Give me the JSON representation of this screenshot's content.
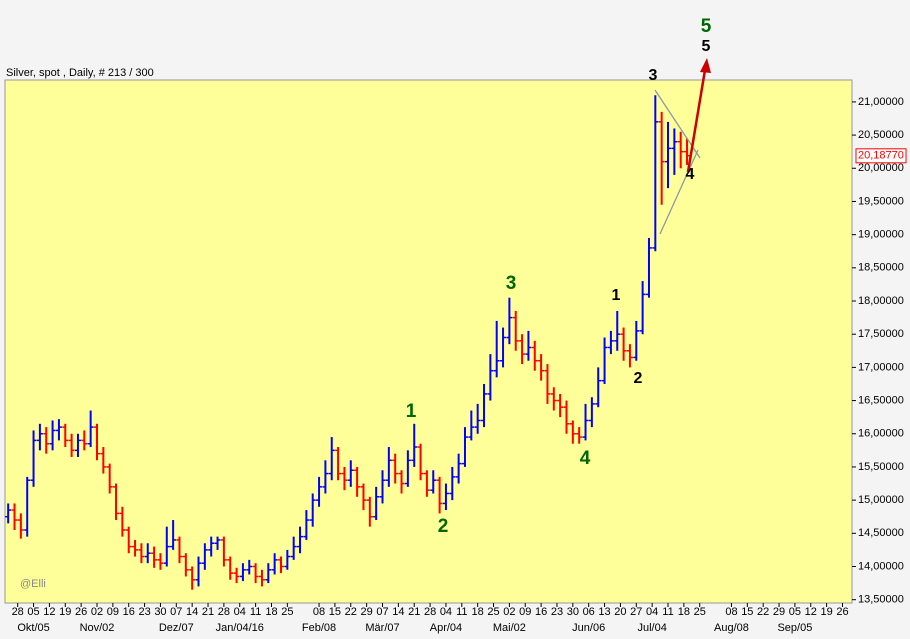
{
  "chart_data": {
    "type": "ohlc",
    "title": "Silver, spot , Daily, # 213 / 300",
    "watermark": "@Elli",
    "up_color": "#0000ff",
    "down_color": "#ff0000",
    "x": [
      -3,
      -1,
      1,
      3,
      5,
      7,
      9,
      11,
      13,
      15,
      17,
      19,
      21,
      23,
      25,
      27,
      29,
      31,
      33,
      35,
      37,
      39,
      41,
      43,
      45,
      47,
      49,
      51,
      53,
      55,
      57,
      59,
      61,
      63,
      65,
      67,
      69,
      71,
      73,
      75,
      77,
      79,
      81,
      83,
      85,
      87,
      89,
      91,
      93,
      95,
      97,
      99,
      101,
      103,
      105,
      107,
      109,
      111,
      113,
      115,
      117,
      119,
      121,
      123,
      125,
      127,
      129,
      131,
      133,
      135,
      137,
      139,
      141,
      143,
      145,
      147,
      149,
      151,
      153,
      155,
      157,
      159,
      161,
      163,
      165,
      167,
      169,
      171,
      173,
      175,
      177,
      179,
      181,
      183,
      185,
      187,
      189,
      191,
      193,
      195,
      197,
      199,
      201,
      203,
      205,
      207,
      209,
      211
    ],
    "values": [
      [
        14.75,
        14.95,
        14.65,
        14.85
      ],
      [
        14.85,
        14.95,
        14.55,
        14.7
      ],
      [
        14.7,
        14.8,
        14.42,
        14.55
      ],
      [
        14.55,
        15.35,
        14.45,
        15.3
      ],
      [
        15.3,
        16.05,
        15.2,
        15.9
      ],
      [
        15.9,
        16.15,
        15.75,
        16.0
      ],
      [
        16.0,
        16.1,
        15.7,
        15.85
      ],
      [
        15.85,
        16.2,
        15.75,
        16.05
      ],
      [
        16.05,
        16.22,
        15.9,
        16.1
      ],
      [
        16.1,
        16.15,
        15.8,
        15.9
      ],
      [
        15.9,
        16.0,
        15.65,
        15.75
      ],
      [
        15.75,
        16.0,
        15.65,
        15.9
      ],
      [
        15.9,
        16.05,
        15.75,
        15.85
      ],
      [
        15.85,
        16.35,
        15.8,
        16.1
      ],
      [
        16.1,
        16.15,
        15.6,
        15.7
      ],
      [
        15.7,
        15.8,
        15.4,
        15.5
      ],
      [
        15.5,
        15.55,
        15.1,
        15.2
      ],
      [
        15.2,
        15.25,
        14.7,
        14.8
      ],
      [
        14.8,
        14.9,
        14.45,
        14.55
      ],
      [
        14.55,
        14.6,
        14.2,
        14.3
      ],
      [
        14.3,
        14.4,
        14.15,
        14.25
      ],
      [
        14.25,
        14.35,
        14.05,
        14.15
      ],
      [
        14.15,
        14.35,
        14.05,
        14.2
      ],
      [
        14.2,
        14.3,
        13.98,
        14.1
      ],
      [
        14.1,
        14.2,
        13.95,
        14.05
      ],
      [
        14.05,
        14.6,
        14.0,
        14.3
      ],
      [
        14.3,
        14.7,
        14.25,
        14.4
      ],
      [
        14.4,
        14.45,
        14.05,
        14.15
      ],
      [
        14.15,
        14.2,
        13.85,
        13.95
      ],
      [
        13.95,
        14.0,
        13.65,
        13.8
      ],
      [
        13.8,
        14.15,
        13.7,
        14.05
      ],
      [
        14.05,
        14.35,
        13.95,
        14.25
      ],
      [
        14.25,
        14.45,
        14.15,
        14.35
      ],
      [
        14.35,
        14.45,
        14.25,
        14.4
      ],
      [
        14.4,
        14.45,
        14.0,
        14.1
      ],
      [
        14.1,
        14.15,
        13.8,
        13.9
      ],
      [
        13.9,
        13.98,
        13.75,
        13.85
      ],
      [
        13.85,
        14.05,
        13.78,
        13.95
      ],
      [
        13.95,
        14.1,
        13.88,
        14.0
      ],
      [
        14.0,
        14.05,
        13.75,
        13.85
      ],
      [
        13.85,
        13.95,
        13.7,
        13.8
      ],
      [
        13.8,
        14.05,
        13.75,
        13.95
      ],
      [
        13.95,
        14.2,
        13.88,
        14.1
      ],
      [
        14.1,
        14.15,
        13.9,
        14.0
      ],
      [
        14.0,
        14.25,
        13.95,
        14.15
      ],
      [
        14.15,
        14.45,
        14.1,
        14.3
      ],
      [
        14.3,
        14.6,
        14.2,
        14.45
      ],
      [
        14.45,
        14.85,
        14.4,
        14.7
      ],
      [
        14.7,
        15.1,
        14.6,
        15.0
      ],
      [
        15.0,
        15.35,
        14.9,
        15.2
      ],
      [
        15.2,
        15.6,
        15.1,
        15.4
      ],
      [
        15.4,
        15.95,
        15.3,
        15.75
      ],
      [
        15.75,
        15.8,
        15.3,
        15.4
      ],
      [
        15.4,
        15.5,
        15.15,
        15.3
      ],
      [
        15.3,
        15.6,
        15.2,
        15.45
      ],
      [
        15.45,
        15.5,
        15.05,
        15.2
      ],
      [
        15.2,
        15.25,
        14.85,
        15.0
      ],
      [
        15.0,
        15.05,
        14.6,
        14.75
      ],
      [
        14.75,
        15.2,
        14.7,
        15.05
      ],
      [
        15.05,
        15.45,
        14.95,
        15.3
      ],
      [
        15.3,
        15.8,
        15.2,
        15.6
      ],
      [
        15.6,
        15.7,
        15.25,
        15.4
      ],
      [
        15.4,
        15.45,
        15.1,
        15.25
      ],
      [
        15.25,
        15.75,
        15.2,
        15.6
      ],
      [
        15.6,
        16.15,
        15.5,
        15.8
      ],
      [
        15.8,
        15.85,
        15.3,
        15.4
      ],
      [
        15.4,
        15.45,
        15.05,
        15.15
      ],
      [
        15.15,
        15.45,
        15.1,
        15.3
      ],
      [
        15.3,
        15.35,
        14.8,
        14.95
      ],
      [
        14.95,
        15.25,
        14.85,
        15.1
      ],
      [
        15.1,
        15.5,
        15.0,
        15.35
      ],
      [
        15.35,
        15.7,
        15.25,
        15.55
      ],
      [
        15.55,
        16.1,
        15.5,
        15.95
      ],
      [
        15.95,
        16.35,
        15.9,
        16.1
      ],
      [
        16.1,
        16.45,
        16.0,
        16.2
      ],
      [
        16.2,
        16.75,
        16.1,
        16.6
      ],
      [
        16.6,
        17.2,
        16.5,
        16.95
      ],
      [
        16.95,
        17.7,
        16.85,
        17.1
      ],
      [
        17.1,
        17.6,
        17.0,
        17.45
      ],
      [
        17.45,
        18.05,
        17.35,
        17.75
      ],
      [
        17.75,
        17.85,
        17.25,
        17.4
      ],
      [
        17.4,
        17.5,
        17.05,
        17.2
      ],
      [
        17.2,
        17.55,
        17.1,
        17.3
      ],
      [
        17.3,
        17.4,
        16.95,
        17.1
      ],
      [
        17.1,
        17.2,
        16.8,
        16.95
      ],
      [
        16.95,
        17.05,
        16.45,
        16.6
      ],
      [
        16.6,
        16.7,
        16.35,
        16.5
      ],
      [
        16.5,
        16.6,
        16.25,
        16.4
      ],
      [
        16.4,
        16.5,
        16.0,
        16.15
      ],
      [
        16.15,
        16.2,
        15.85,
        16.0
      ],
      [
        16.0,
        16.1,
        15.85,
        15.95
      ],
      [
        15.95,
        16.45,
        15.9,
        16.2
      ],
      [
        16.2,
        16.55,
        16.1,
        16.45
      ],
      [
        16.45,
        17.0,
        16.4,
        16.8
      ],
      [
        16.8,
        17.45,
        16.75,
        17.3
      ],
      [
        17.3,
        17.55,
        17.2,
        17.4
      ],
      [
        17.4,
        17.85,
        17.25,
        17.5
      ],
      [
        17.5,
        17.6,
        17.1,
        17.25
      ],
      [
        17.25,
        17.35,
        17.0,
        17.15
      ],
      [
        17.15,
        17.7,
        17.1,
        17.55
      ],
      [
        17.55,
        18.3,
        17.5,
        18.1
      ],
      [
        18.1,
        18.95,
        18.05,
        18.8
      ],
      [
        18.8,
        21.1,
        18.75,
        20.7
      ],
      [
        20.7,
        20.85,
        19.45,
        20.1
      ],
      [
        20.1,
        20.7,
        19.7,
        20.3
      ],
      [
        20.3,
        20.6,
        19.9,
        20.4
      ],
      [
        20.4,
        20.55,
        20.0,
        20.25
      ],
      [
        20.25,
        20.45,
        20.05,
        20.19
      ]
    ],
    "last_price": {
      "value": 20.1877,
      "label": "20,18770"
    },
    "xlim": [
      -4,
      263
    ],
    "ylim": [
      13.45,
      21.33
    ],
    "yticks": [
      {
        "value": 13.5,
        "label": "13,50000"
      },
      {
        "value": 14,
        "label": "14,00000"
      },
      {
        "value": 14.5,
        "label": "14,50000"
      },
      {
        "value": 15,
        "label": "15,00000"
      },
      {
        "value": 15.5,
        "label": "15,50000"
      },
      {
        "value": 16,
        "label": "16,00000"
      },
      {
        "value": 16.5,
        "label": "16,50000"
      },
      {
        "value": 17,
        "label": "17,00000"
      },
      {
        "value": 17.5,
        "label": "17,50000"
      },
      {
        "value": 18,
        "label": "18,00000"
      },
      {
        "value": 18.5,
        "label": "18,50000"
      },
      {
        "value": 19,
        "label": "19,00000"
      },
      {
        "value": 19.5,
        "label": "19,50000"
      },
      {
        "value": 20,
        "label": "20,00000"
      },
      {
        "value": 20.5,
        "label": "20,50000"
      },
      {
        "value": 21,
        "label": "21,00000"
      }
    ],
    "xticks": [
      {
        "value": 0,
        "label": "28"
      },
      {
        "value": 5,
        "label": "05"
      },
      {
        "value": 10,
        "label": "12"
      },
      {
        "value": 15,
        "label": "19"
      },
      {
        "value": 20,
        "label": "26"
      },
      {
        "value": 25,
        "label": "02"
      },
      {
        "value": 30,
        "label": "09"
      },
      {
        "value": 35,
        "label": "16"
      },
      {
        "value": 40,
        "label": "23"
      },
      {
        "value": 45,
        "label": "30"
      },
      {
        "value": 50,
        "label": "07"
      },
      {
        "value": 55,
        "label": "14"
      },
      {
        "value": 60,
        "label": "21"
      },
      {
        "value": 65,
        "label": "28"
      },
      {
        "value": 70,
        "label": "04"
      },
      {
        "value": 75,
        "label": "11"
      },
      {
        "value": 80,
        "label": "18"
      },
      {
        "value": 85,
        "label": "25"
      },
      {
        "value": 95,
        "label": "08"
      },
      {
        "value": 100,
        "label": "15"
      },
      {
        "value": 105,
        "label": "22"
      },
      {
        "value": 110,
        "label": "29"
      },
      {
        "value": 115,
        "label": "07"
      },
      {
        "value": 120,
        "label": "14"
      },
      {
        "value": 125,
        "label": "21"
      },
      {
        "value": 130,
        "label": "28"
      },
      {
        "value": 135,
        "label": "04"
      },
      {
        "value": 140,
        "label": "11"
      },
      {
        "value": 145,
        "label": "18"
      },
      {
        "value": 150,
        "label": "25"
      },
      {
        "value": 155,
        "label": "02"
      },
      {
        "value": 160,
        "label": "09"
      },
      {
        "value": 165,
        "label": "16"
      },
      {
        "value": 170,
        "label": "23"
      },
      {
        "value": 175,
        "label": "30"
      },
      {
        "value": 180,
        "label": "06"
      },
      {
        "value": 185,
        "label": "13"
      },
      {
        "value": 190,
        "label": "20"
      },
      {
        "value": 195,
        "label": "27"
      },
      {
        "value": 200,
        "label": "04"
      },
      {
        "value": 205,
        "label": "11"
      },
      {
        "value": 210,
        "label": "18"
      },
      {
        "value": 215,
        "label": "25"
      },
      {
        "value": 225,
        "label": "08"
      },
      {
        "value": 230,
        "label": "15"
      },
      {
        "value": 235,
        "label": "22"
      },
      {
        "value": 240,
        "label": "29"
      },
      {
        "value": 245,
        "label": "05"
      },
      {
        "value": 250,
        "label": "12"
      },
      {
        "value": 255,
        "label": "19"
      },
      {
        "value": 260,
        "label": "26"
      }
    ],
    "month_ticks": [
      {
        "value": 5,
        "label": "Okt/05"
      },
      {
        "value": 25,
        "label": "Nov/02"
      },
      {
        "value": 50,
        "label": "Dez/07"
      },
      {
        "value": 70,
        "label": "Jan/04/16"
      },
      {
        "value": 95,
        "label": "Feb/08"
      },
      {
        "value": 115,
        "label": "Mär/07"
      },
      {
        "value": 135,
        "label": "Apr/04"
      },
      {
        "value": 155,
        "label": "Mai/02"
      },
      {
        "value": 180,
        "label": "Jun/06"
      },
      {
        "value": 200,
        "label": "Jul/04"
      },
      {
        "value": 225,
        "label": "Aug/08"
      },
      {
        "value": 245,
        "label": "Sep/05"
      }
    ],
    "annotations": [
      {
        "text": "5",
        "color": "#006600"
      },
      {
        "text": "5",
        "color": "#000000"
      },
      {
        "text": "3",
        "color": "#000000"
      },
      {
        "text": "4",
        "color": "#000000"
      },
      {
        "text": "1",
        "color": "#000000"
      },
      {
        "text": "2",
        "color": "#000000"
      },
      {
        "text": "3",
        "color": "#006600"
      },
      {
        "text": "4",
        "color": "#006600"
      },
      {
        "text": "1",
        "color": "#006600"
      },
      {
        "text": "2",
        "color": "#006600"
      }
    ]
  }
}
